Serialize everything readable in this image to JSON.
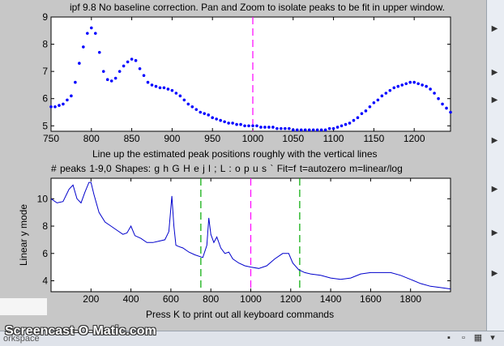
{
  "window": {
    "title": "ipf 9.8 No baseline correction. Pan and Zoom to isolate peaks to be fit in upper window.",
    "instruction1": "Line up the estimated peak positions roughly with the vertical lines",
    "instruction2": "# peaks 1-9,0   Shapes: g h G H e j l ; L : o p u s `   Fit=f   t=autozero   m=linear/log",
    "footer": "Press K to print out all keyboard commands",
    "taskbar_label": "orkspace",
    "watermark": "Screencast-O-Matic.com"
  },
  "chart_data": [
    {
      "type": "scatter",
      "title": "",
      "xlabel": "",
      "ylabel": "",
      "xlim": [
        750,
        1245
      ],
      "ylim": [
        4.8,
        9
      ],
      "xticks": [
        750,
        800,
        850,
        900,
        950,
        1000,
        1050,
        1100,
        1150,
        1200
      ],
      "yticks": [
        5,
        6,
        7,
        8,
        9
      ],
      "peak_markers_x": [
        1000
      ],
      "color": "#0000ff",
      "marker_color": "#ff00ff",
      "series": [
        {
          "x": [
            750,
            755,
            760,
            765,
            770,
            775,
            780,
            785,
            790,
            795,
            800,
            805,
            810,
            815,
            820,
            825,
            830,
            835,
            840,
            845,
            850,
            855,
            860,
            865,
            870,
            875,
            880,
            885,
            890,
            895,
            900,
            905,
            910,
            915,
            920,
            925,
            930,
            935,
            940,
            945,
            950,
            955,
            960,
            965,
            970,
            975,
            980,
            985,
            990,
            995,
            1000,
            1005,
            1010,
            1015,
            1020,
            1025,
            1030,
            1035,
            1040,
            1045,
            1050,
            1055,
            1060,
            1065,
            1070,
            1075,
            1080,
            1085,
            1090,
            1095,
            1100,
            1105,
            1110,
            1115,
            1120,
            1125,
            1130,
            1135,
            1140,
            1145,
            1150,
            1155,
            1160,
            1165,
            1170,
            1175,
            1180,
            1185,
            1190,
            1195,
            1200,
            1205,
            1210,
            1215,
            1220,
            1225,
            1230,
            1235,
            1240,
            1245
          ],
          "y": [
            5.7,
            5.7,
            5.75,
            5.8,
            5.95,
            6.1,
            6.6,
            7.3,
            7.9,
            8.4,
            8.6,
            8.4,
            7.7,
            7.0,
            6.7,
            6.65,
            6.75,
            7.0,
            7.2,
            7.35,
            7.45,
            7.4,
            7.1,
            6.85,
            6.6,
            6.5,
            6.45,
            6.4,
            6.4,
            6.35,
            6.3,
            6.2,
            6.1,
            5.95,
            5.8,
            5.7,
            5.6,
            5.5,
            5.45,
            5.4,
            5.3,
            5.25,
            5.2,
            5.15,
            5.1,
            5.1,
            5.05,
            5.05,
            5.0,
            5.0,
            5.0,
            5.0,
            4.95,
            4.95,
            4.95,
            4.95,
            4.9,
            4.9,
            4.9,
            4.9,
            4.85,
            4.85,
            4.85,
            4.85,
            4.85,
            4.85,
            4.85,
            4.85,
            4.85,
            4.9,
            4.9,
            4.95,
            5.0,
            5.05,
            5.1,
            5.2,
            5.3,
            5.45,
            5.55,
            5.7,
            5.85,
            5.95,
            6.1,
            6.2,
            6.3,
            6.4,
            6.45,
            6.5,
            6.55,
            6.6,
            6.6,
            6.55,
            6.5,
            6.45,
            6.35,
            6.2,
            6.0,
            5.8,
            5.65,
            5.5
          ]
        }
      ]
    },
    {
      "type": "line",
      "title": "",
      "xlabel": "",
      "ylabel": "Linear y mode",
      "xlim": [
        0,
        2000
      ],
      "ylim": [
        3.2,
        11.5
      ],
      "xticks": [
        200,
        400,
        600,
        800,
        1000,
        1200,
        1400,
        1600,
        1800
      ],
      "yticks": [
        4,
        6,
        8,
        10
      ],
      "peak_markers_x": [
        1000
      ],
      "window_markers_x": [
        750,
        1245
      ],
      "color": "#0000cc",
      "marker_color": "#ff00ff",
      "window_color": "#00aa00",
      "series": [
        {
          "x": [
            0,
            30,
            60,
            90,
            110,
            130,
            150,
            170,
            190,
            200,
            215,
            240,
            270,
            300,
            330,
            360,
            380,
            400,
            420,
            450,
            480,
            510,
            540,
            570,
            590,
            605,
            615,
            625,
            640,
            660,
            690,
            720,
            760,
            780,
            790,
            800,
            815,
            830,
            850,
            870,
            890,
            910,
            940,
            970,
            1000,
            1040,
            1080,
            1120,
            1160,
            1190,
            1210,
            1240,
            1270,
            1300,
            1350,
            1400,
            1450,
            1500,
            1550,
            1600,
            1650,
            1700,
            1750,
            1800,
            1850,
            1900,
            1950,
            2000
          ],
          "y": [
            10.0,
            9.7,
            9.8,
            10.7,
            11.0,
            10.0,
            9.7,
            10.5,
            11.2,
            11.2,
            10.3,
            9.0,
            8.3,
            8.0,
            7.7,
            7.4,
            7.5,
            8.0,
            7.3,
            7.1,
            6.8,
            6.8,
            6.9,
            7.0,
            7.6,
            10.2,
            8.0,
            6.6,
            6.5,
            6.4,
            6.1,
            5.9,
            5.7,
            6.6,
            8.6,
            7.4,
            6.8,
            7.2,
            6.4,
            6.0,
            6.1,
            5.6,
            5.3,
            5.1,
            5.0,
            4.9,
            5.1,
            5.6,
            6.0,
            6.0,
            5.3,
            4.8,
            4.6,
            4.5,
            4.4,
            4.2,
            4.1,
            4.2,
            4.5,
            4.6,
            4.6,
            4.6,
            4.4,
            4.1,
            3.8,
            3.6,
            3.5,
            3.4
          ]
        }
      ]
    }
  ]
}
